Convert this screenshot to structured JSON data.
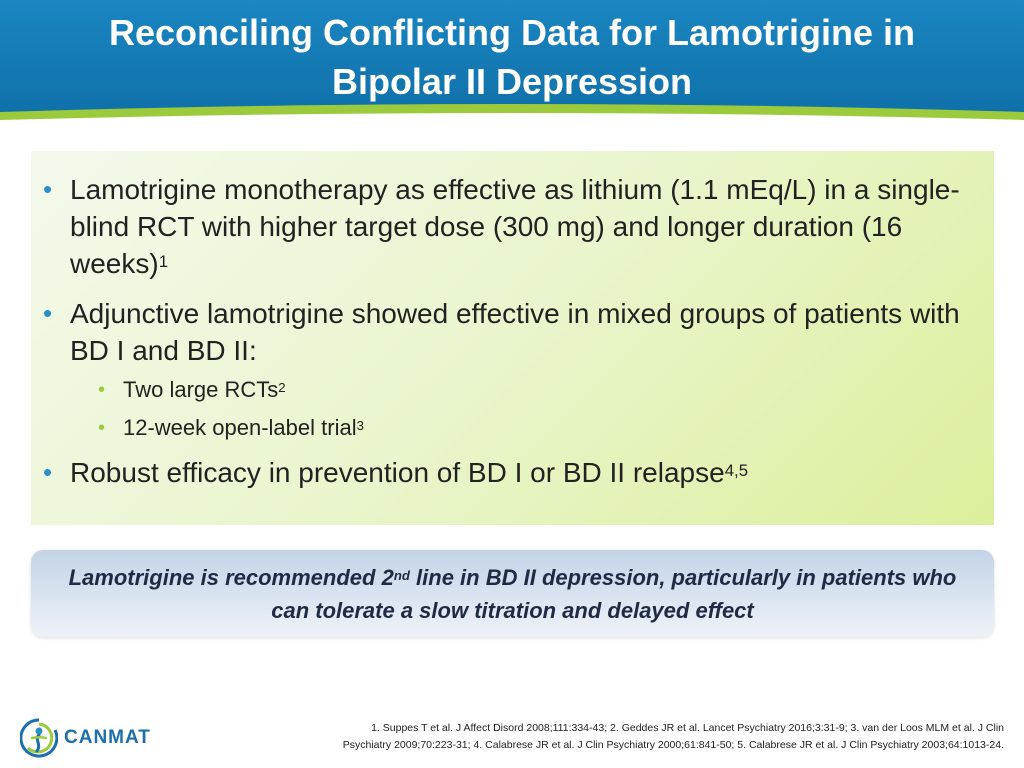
{
  "header": {
    "title_line1": "Reconciling Conflicting Data for Lamotrigine in",
    "title_line2": "Bipolar II Depression"
  },
  "bullets": [
    {
      "text": "Lamotrigine monotherapy as effective as lithium (1.1 mEq/L) in a single-blind RCT with higher target dose (300 mg) and longer duration (16 weeks)",
      "ref": "1"
    },
    {
      "text": "Adjunctive lamotrigine showed effective in mixed groups of patients with BD I and BD II:",
      "subbullets": [
        {
          "text": "Two large RCTs",
          "ref": "2"
        },
        {
          "text": "12-week open-label trial",
          "ref": "3"
        }
      ]
    },
    {
      "text": "Robust efficacy in prevention of BD I or BD II relapse",
      "ref": "4,5"
    }
  ],
  "callout": {
    "part1": "Lamotrigine is recommended 2",
    "sup": "nd",
    "part2": " line in BD II depression, particularly in patients who can tolerate a slow titration and delayed effect"
  },
  "logo": {
    "text": "CANMAT",
    "icon": "canmat-logo-icon"
  },
  "references": {
    "line1": "1. Suppes T et al. J Affect Disord 2008;111:334-43; 2. Geddes JR et al. Lancet Psychiatry 2016;3:31-9; 3. van der Loos MLM et al. J Clin",
    "line2": "Psychiatry 2009;70:223-31; 4. Calabrese JR et al. J Clin Psychiatry 2000;61:841-50; 5. Calabrese JR et al. J Clin Psychiatry 2003;64:1013-24."
  },
  "colors": {
    "header": "#1a86c2",
    "bullet_blue": "#2b8fc9",
    "bullet_green": "#9bcb3c",
    "content_box": "#e9f5cc",
    "callout": "#dbe5f1"
  }
}
